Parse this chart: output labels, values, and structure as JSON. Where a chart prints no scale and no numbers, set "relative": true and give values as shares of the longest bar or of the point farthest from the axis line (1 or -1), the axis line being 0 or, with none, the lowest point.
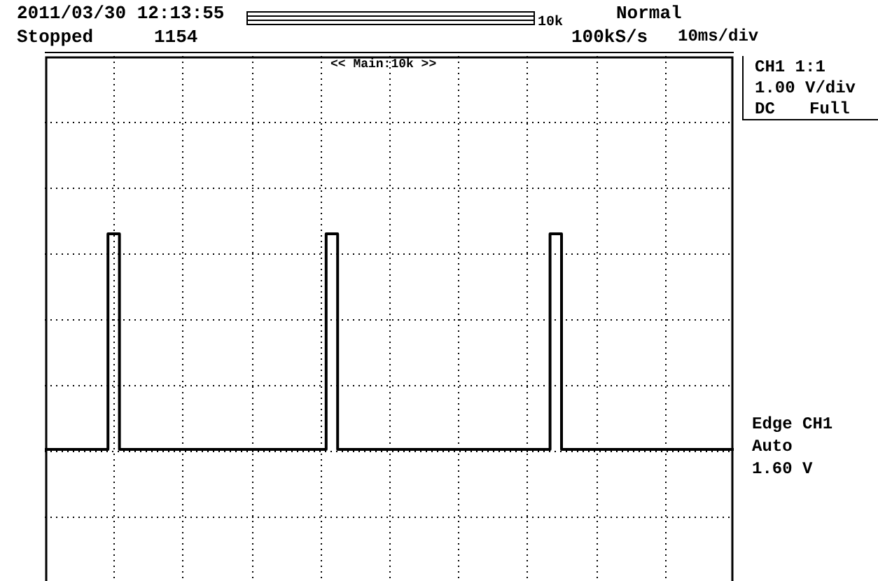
{
  "chart_data": {
    "type": "step",
    "relative": true,
    "grid": true,
    "categories": [
      null,
      null,
      null,
      null,
      null,
      null,
      null,
      null,
      null,
      null,
      null,
      null,
      null,
      null,
      null,
      null,
      null,
      null,
      null,
      null,
      null,
      null,
      null,
      null,
      null,
      null,
      null,
      null,
      null,
      null,
      null,
      null,
      null,
      null,
      null,
      null,
      null,
      null,
      null,
      null,
      null,
      null,
      null,
      null,
      null,
      null,
      null,
      null,
      null,
      null,
      null,
      null,
      null,
      null,
      null,
      null,
      null,
      null,
      null,
      null,
      null,
      null,
      null,
      null,
      null,
      null,
      null,
      null,
      null,
      null,
      null,
      null,
      null,
      null,
      null,
      null,
      null,
      null,
      null,
      null,
      null,
      null,
      null,
      null,
      null,
      null,
      null,
      null,
      null,
      null,
      null,
      null,
      null,
      null,
      null,
      null,
      null,
      null,
      null,
      null,
      null,
      null,
      null,
      null,
      null,
      null,
      null,
      null,
      null,
      null,
      null,
      null,
      null,
      null,
      null,
      null,
      null,
      null,
      null,
      null,
      null
    ],
    "series": [
      {
        "color": "#000000",
        "values": [
          0,
          0,
          0,
          0,
          0,
          0,
          0,
          0,
          0,
          0,
          0,
          0,
          1,
          1,
          0,
          0,
          0,
          0,
          0,
          0,
          0,
          0,
          0,
          0,
          0,
          0,
          0,
          0,
          0,
          0,
          0,
          0,
          0,
          0,
          0,
          0,
          0,
          0,
          0,
          0,
          0,
          0,
          0,
          0,
          0,
          0,
          0,
          0,
          0,
          0,
          1,
          1,
          0,
          0,
          0,
          0,
          0,
          0,
          0,
          0,
          0,
          0,
          0,
          0,
          0,
          0,
          0,
          0,
          0,
          0,
          0,
          0,
          0,
          0,
          0,
          0,
          0,
          0,
          0,
          0,
          0,
          0,
          0,
          0,
          0,
          0,
          0,
          0,
          0,
          1,
          1,
          0,
          0,
          0,
          0,
          0,
          0,
          0,
          0,
          0,
          0,
          0,
          0,
          0,
          0,
          0,
          0,
          0,
          0,
          0,
          0,
          0,
          0,
          0,
          0,
          0,
          0,
          0,
          0,
          0,
          0
        ]
      }
    ],
    "annotations": [
      "2011/03/30 12:13:55",
      "Stopped",
      "1154",
      "10k",
      "Normal",
      "100kS/s",
      "10ms/div",
      "<< Main:10k >>",
      "CH1 1:1",
      "1.00 V/div",
      "DC",
      "Full",
      "Edge CH1",
      "Auto",
      "1.60 V"
    ]
  }
}
